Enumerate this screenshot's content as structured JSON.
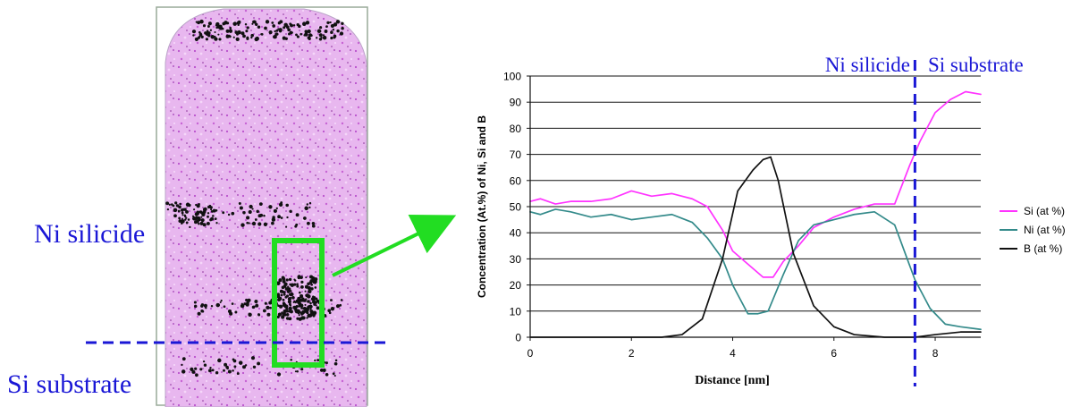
{
  "left_panel": {
    "region_label_top": "Ni silicide",
    "region_label_bottom": "Si substrate"
  },
  "chart_data": {
    "type": "line",
    "title": "",
    "xlabel": "Distance [nm]",
    "ylabel": "Concentration (At.%) of Ni, Si and B",
    "xlim": [
      0,
      8.9
    ],
    "ylim": [
      0,
      100
    ],
    "xticks": [
      0,
      2,
      4,
      6,
      8
    ],
    "yticks": [
      0,
      10,
      20,
      30,
      40,
      50,
      60,
      70,
      80,
      90,
      100
    ],
    "grid": "horizontal",
    "legend_position": "right",
    "annotations": {
      "left_region": "Ni silicide",
      "right_region": "Si substrate",
      "interface_x": 7.6
    },
    "series": [
      {
        "name": "Si (at %)",
        "color": "#ff33ff",
        "x": [
          0,
          0.2,
          0.5,
          0.8,
          1.2,
          1.6,
          2.0,
          2.4,
          2.8,
          3.2,
          3.5,
          3.8,
          4.0,
          4.3,
          4.6,
          4.8,
          5.0,
          5.3,
          5.6,
          6.0,
          6.4,
          6.8,
          7.2,
          7.5,
          7.7,
          8.0,
          8.3,
          8.6,
          8.9
        ],
        "values": [
          52,
          53,
          51,
          52,
          52,
          53,
          56,
          54,
          55,
          53,
          50,
          41,
          33,
          28,
          23,
          23,
          29,
          35,
          42,
          46,
          49,
          51,
          51,
          66,
          75,
          86,
          91,
          94,
          93
        ]
      },
      {
        "name": "Ni (at %)",
        "color": "#338a8a",
        "x": [
          0,
          0.2,
          0.5,
          0.8,
          1.2,
          1.6,
          2.0,
          2.4,
          2.8,
          3.2,
          3.5,
          3.8,
          4.0,
          4.3,
          4.5,
          4.7,
          5.0,
          5.3,
          5.6,
          6.0,
          6.4,
          6.8,
          7.2,
          7.6,
          7.9,
          8.2,
          8.5,
          8.9
        ],
        "values": [
          48,
          47,
          49,
          48,
          46,
          47,
          45,
          46,
          47,
          44,
          38,
          30,
          20,
          9,
          9,
          10,
          24,
          37,
          43,
          45,
          47,
          48,
          43,
          22,
          11,
          5,
          4,
          3
        ]
      },
      {
        "name": "B (at %)",
        "color": "#111111",
        "x": [
          0,
          1.0,
          2.0,
          2.6,
          3.0,
          3.4,
          3.8,
          4.1,
          4.4,
          4.6,
          4.75,
          4.9,
          5.2,
          5.6,
          6.0,
          6.4,
          7.0,
          7.6,
          8.0,
          8.5,
          8.9
        ],
        "values": [
          0,
          0,
          0,
          0,
          1,
          7,
          30,
          56,
          64,
          68,
          69,
          60,
          32,
          12,
          4,
          1,
          0,
          0,
          1,
          2,
          2
        ]
      }
    ]
  }
}
